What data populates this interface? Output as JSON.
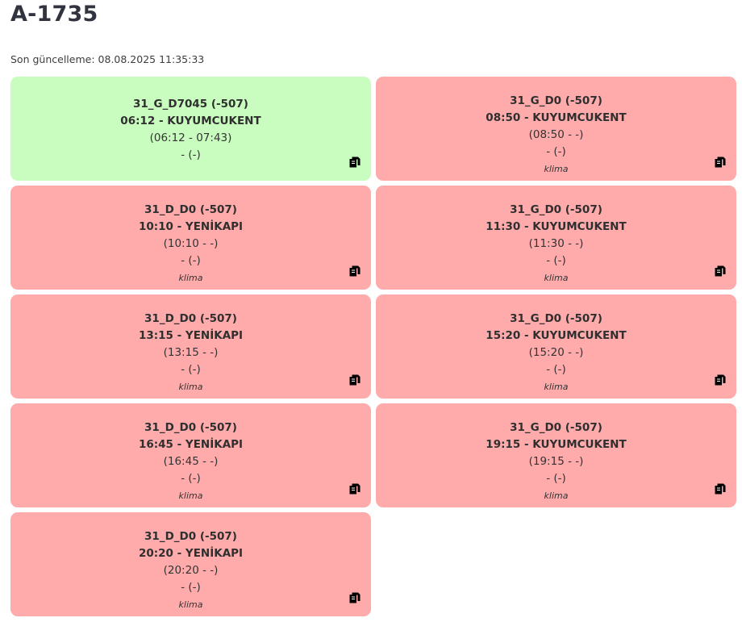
{
  "page": {
    "title": "A-1735",
    "updated_label": "Son güncelleme:",
    "updated_value": "08.08.2025 11:35:33"
  },
  "colors": {
    "active_card": "#c9fdbf",
    "inactive_card": "#ffabab"
  },
  "icons": {
    "copy": "copy-icon"
  },
  "trips": [
    {
      "status": "active",
      "route": "31_G_D7045 (-507)",
      "departure": "06:12 - KUYUMCUKENT",
      "times": "(06:12 - 07:43)",
      "extra": "- (-)",
      "note": ""
    },
    {
      "status": "inactive",
      "route": "31_G_D0 (-507)",
      "departure": "08:50 - KUYUMCUKENT",
      "times": "(08:50 - -)",
      "extra": "- (-)",
      "note": "klima"
    },
    {
      "status": "inactive",
      "route": "31_D_D0 (-507)",
      "departure": "10:10 - YENİKAPI",
      "times": "(10:10 - -)",
      "extra": "- (-)",
      "note": "klima"
    },
    {
      "status": "inactive",
      "route": "31_G_D0 (-507)",
      "departure": "11:30 - KUYUMCUKENT",
      "times": "(11:30 - -)",
      "extra": "- (-)",
      "note": "klima"
    },
    {
      "status": "inactive",
      "route": "31_D_D0 (-507)",
      "departure": "13:15 - YENİKAPI",
      "times": "(13:15 - -)",
      "extra": "- (-)",
      "note": "klima"
    },
    {
      "status": "inactive",
      "route": "31_G_D0 (-507)",
      "departure": "15:20 - KUYUMCUKENT",
      "times": "(15:20 - -)",
      "extra": "- (-)",
      "note": "klima"
    },
    {
      "status": "inactive",
      "route": "31_D_D0 (-507)",
      "departure": "16:45 - YENİKAPI",
      "times": "(16:45 - -)",
      "extra": "- (-)",
      "note": "klima"
    },
    {
      "status": "inactive",
      "route": "31_G_D0 (-507)",
      "departure": "19:15 - KUYUMCUKENT",
      "times": "(19:15 - -)",
      "extra": "- (-)",
      "note": "klima"
    },
    {
      "status": "inactive",
      "route": "31_D_D0 (-507)",
      "departure": "20:20 - YENİKAPI",
      "times": "(20:20 - -)",
      "extra": "- (-)",
      "note": "klima"
    }
  ]
}
